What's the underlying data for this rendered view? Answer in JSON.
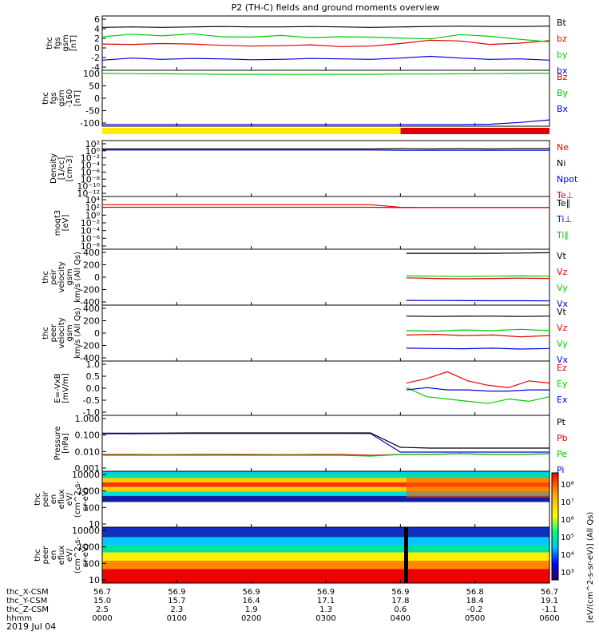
{
  "title": "P2 (TH-C) fields and ground moments overview",
  "x_time_ticks": [
    "0000",
    "0100",
    "0200",
    "0300",
    "0400",
    "0500",
    "0600"
  ],
  "orbit_rows": [
    {
      "label": "thc_X-CSM",
      "values": [
        "56.7",
        "56.9",
        "56.9",
        "56.9",
        "56.9",
        "56.8",
        "56.7"
      ]
    },
    {
      "label": "thc_Y-CSM",
      "values": [
        "15.0",
        "15.7",
        "16.4",
        "17.1",
        "17.8",
        "18.4",
        "19.1"
      ]
    },
    {
      "label": "thc_Z-CSM",
      "values": [
        "2.5",
        "2.3",
        "1.9",
        "1.3",
        "0.6",
        "-0.2",
        "-1.1"
      ]
    },
    {
      "label": "hhmm",
      "values": [
        "0000",
        "0100",
        "0200",
        "0300",
        "0400",
        "0500",
        "0600"
      ]
    }
  ],
  "date_label": "2019 Jul 04",
  "colors": {
    "black": "#000000",
    "red": "#e00000",
    "green": "#00cc00",
    "blue": "#0000dd",
    "yellow": "#ffee00"
  },
  "chart_data": [
    {
      "type": "line",
      "ylabel": [
        "thc",
        "fgs",
        "gsm",
        "[nT]"
      ],
      "yticks": [
        "6",
        "4",
        "2",
        "0",
        "-2",
        "-4"
      ],
      "ylim": [
        -5.5,
        6.5
      ],
      "legend": [
        {
          "name": "Bt",
          "color": "black"
        },
        {
          "name": "bz",
          "color": "red"
        },
        {
          "name": "by",
          "color": "green"
        },
        {
          "name": "bx",
          "color": "blue"
        }
      ],
      "series": [
        {
          "name": "Bt",
          "values": [
            4.2,
            4.3,
            4.2,
            4.3,
            4.4,
            4.3,
            4.3,
            4.4,
            4.3,
            4.2,
            4.3,
            4.4,
            4.5,
            4.4,
            4.4,
            4.5
          ]
        },
        {
          "name": "bz",
          "values": [
            0.3,
            0.2,
            0.4,
            0.3,
            0.0,
            -0.2,
            -0.1,
            0.1,
            -0.3,
            -0.2,
            0.4,
            1.2,
            1.0,
            0.2,
            0.5,
            1.1
          ]
        },
        {
          "name": "by",
          "values": [
            2.0,
            2.6,
            2.2,
            2.7,
            2.0,
            1.9,
            2.3,
            1.8,
            2.0,
            1.9,
            1.7,
            1.5,
            2.5,
            2.1,
            1.4,
            0.8
          ]
        },
        {
          "name": "bx",
          "values": [
            -3.5,
            -3.0,
            -3.3,
            -3.1,
            -3.2,
            -3.4,
            -3.3,
            -3.1,
            -3.2,
            -3.3,
            -3.0,
            -2.6,
            -3.0,
            -3.3,
            -3.2,
            -3.5
          ]
        }
      ]
    },
    {
      "type": "line",
      "ylabel": [
        "thc",
        "fgs",
        "gsm",
        "-160",
        "[nT]"
      ],
      "yticks": [
        "100",
        "50",
        "0",
        "-50",
        "-100"
      ],
      "ylim": [
        -140,
        105
      ],
      "legend": [
        {
          "name": "Bz",
          "color": "red"
        },
        {
          "name": "By",
          "color": "green"
        },
        {
          "name": "Bx",
          "color": "blue"
        }
      ],
      "series": [
        {
          "name": "By",
          "values": [
            98,
            97,
            96,
            95,
            94,
            94,
            93,
            93,
            94,
            94,
            95,
            95,
            96,
            97,
            98,
            99
          ]
        },
        {
          "name": "Bx",
          "values": [
            -140,
            -140,
            -140,
            -140,
            -140,
            -140,
            -140,
            -140,
            -140,
            -140,
            -140,
            -140,
            -140,
            -138,
            -130,
            -118
          ]
        }
      ]
    },
    {
      "type": "line",
      "ylabel": [
        "Density",
        "[1/cc]",
        "[cm-3]"
      ],
      "yticks": [
        "10²",
        "10⁰",
        "10⁻²",
        "10⁻⁴",
        "10⁻⁶",
        "10⁻⁸",
        "10⁻¹⁰",
        "10⁻¹²"
      ],
      "ylim": [
        -13,
        2.5
      ],
      "log": true,
      "legend": [
        {
          "name": "Ne",
          "color": "red"
        },
        {
          "name": "Ni",
          "color": "black"
        },
        {
          "name": "Npot",
          "color": "blue"
        },
        {
          "name": "Te⊥",
          "color": "red"
        }
      ],
      "series": [
        {
          "name": "Ni",
          "values": [
            0.5,
            0.5,
            0.5,
            0.5,
            0.5,
            0.5,
            0.5,
            0.5,
            0.5,
            0.5,
            0.6,
            0.5,
            0.6,
            0.5,
            0.6,
            0.6
          ]
        },
        {
          "name": "Npot",
          "values": [
            0.2,
            0.2,
            0.2,
            0.2,
            0.2,
            0.2,
            0.2,
            0.2,
            0.2,
            0.2,
            0.1,
            0.1,
            0.1,
            0.1,
            0.1,
            0.1
          ]
        }
      ]
    },
    {
      "type": "line",
      "ylabel": [
        "moqt3",
        "[eV]"
      ],
      "yticks": [
        "10⁴",
        "10²",
        "10⁰",
        "10⁻²",
        "10⁻⁴",
        "10⁻⁶",
        "10⁻⁸"
      ],
      "ylim": [
        -9,
        4.5
      ],
      "log": true,
      "legend": [
        {
          "name": "Te∥",
          "color": "black"
        },
        {
          "name": "Ti⊥",
          "color": "blue"
        },
        {
          "name": "Ti∥",
          "color": "green"
        }
      ],
      "series": [
        {
          "name": "Ti",
          "values": [
            2.7,
            2.7,
            2.7,
            2.7,
            2.7,
            2.7,
            2.7,
            2.7,
            2.7,
            2.7,
            2.0,
            1.9,
            1.9,
            1.9,
            1.9,
            1.9
          ]
        },
        {
          "name": "Te",
          "values": [
            2.0,
            2.0,
            2.0,
            2.0,
            2.0,
            2.0,
            2.0,
            2.0,
            2.0,
            2.0,
            1.9,
            1.9,
            1.9,
            1.9,
            1.9,
            1.9
          ]
        }
      ]
    },
    {
      "type": "line",
      "ylabel": [
        "thc",
        "peir",
        "velocity",
        "gsm",
        "km/s (All Qs)"
      ],
      "yticks": [
        "400",
        "200",
        "0",
        "-200",
        "-400"
      ],
      "ylim": [
        -420,
        420
      ],
      "start_x": 0.68,
      "legend": [
        {
          "name": "Vt",
          "color": "black"
        },
        {
          "name": "Vz",
          "color": "red"
        },
        {
          "name": "Vy",
          "color": "green"
        },
        {
          "name": "Vx",
          "color": "blue"
        }
      ],
      "series": [
        {
          "name": "Vt",
          "values": [
            380,
            380,
            380,
            380,
            385,
            390
          ]
        },
        {
          "name": "Vz",
          "values": [
            -10,
            -20,
            -25,
            -20,
            -15,
            -20
          ]
        },
        {
          "name": "Vy",
          "values": [
            20,
            15,
            10,
            15,
            20,
            15
          ]
        },
        {
          "name": "Vx",
          "values": [
            -370,
            -372,
            -374,
            -375,
            -375,
            -378
          ]
        }
      ]
    },
    {
      "type": "line",
      "ylabel": [
        "thc",
        "peer",
        "velocity",
        "gsm",
        "km/s (All Qs)"
      ],
      "yticks": [
        "400",
        "200",
        "0",
        "-200",
        "-400"
      ],
      "ylim": [
        -420,
        420
      ],
      "start_x": 0.68,
      "legend": [
        {
          "name": "Vt",
          "color": "black"
        },
        {
          "name": "Vz",
          "color": "red"
        },
        {
          "name": "Vy",
          "color": "green"
        },
        {
          "name": "Vx",
          "color": "blue"
        }
      ],
      "series": [
        {
          "name": "Vt",
          "values": [
            270,
            265,
            268,
            270,
            265,
            270
          ]
        },
        {
          "name": "Vz",
          "values": [
            -30,
            -20,
            -40,
            -30,
            -60,
            -40
          ]
        },
        {
          "name": "Vy",
          "values": [
            40,
            30,
            50,
            40,
            60,
            40
          ]
        },
        {
          "name": "Vx",
          "values": [
            -240,
            -245,
            -250,
            -240,
            -255,
            -245
          ]
        }
      ]
    },
    {
      "type": "line",
      "ylabel": [
        "E=-VxB",
        "[mV/m]"
      ],
      "yticks": [
        "1.0",
        "0.5",
        "0.0",
        "-0.5",
        "-1.0"
      ],
      "ylim": [
        -1.05,
        1.2
      ],
      "start_x": 0.68,
      "legend": [
        {
          "name": "Ez",
          "color": "red"
        },
        {
          "name": "Ey",
          "color": "green"
        },
        {
          "name": "Ex",
          "color": "blue"
        }
      ],
      "series": [
        {
          "name": "Ez",
          "values": [
            0.3,
            0.5,
            0.8,
            0.4,
            0.2,
            0.1,
            0.4,
            0.3
          ]
        },
        {
          "name": "Ey",
          "values": [
            0.1,
            -0.3,
            -0.4,
            -0.5,
            -0.6,
            -0.4,
            -0.5,
            -0.3
          ]
        },
        {
          "name": "Ex",
          "values": [
            0.0,
            0.1,
            0.0,
            0.0,
            -0.05,
            -0.05,
            0.0,
            0.0
          ]
        }
      ]
    },
    {
      "type": "line",
      "ylabel": [
        "Pressure",
        "[nPa]"
      ],
      "yticks": [
        "1.000",
        "0.100",
        "0.010",
        "0.001"
      ],
      "ylim": [
        -3.1,
        0.2
      ],
      "log": true,
      "legend": [
        {
          "name": "Pt",
          "color": "black"
        },
        {
          "name": "Pb",
          "color": "red"
        },
        {
          "name": "Pe",
          "color": "green"
        },
        {
          "name": "Pi",
          "color": "blue"
        }
      ],
      "series": [
        {
          "name": "Pt",
          "values": [
            -0.82,
            -0.82,
            -0.81,
            -0.8,
            -0.8,
            -0.8,
            -0.8,
            -0.8,
            -0.8,
            -0.8,
            -1.7,
            -1.75,
            -1.75,
            -1.75,
            -1.75,
            -1.75
          ]
        },
        {
          "name": "Pi",
          "values": [
            -0.85,
            -0.85,
            -0.84,
            -0.83,
            -0.83,
            -0.83,
            -0.83,
            -0.83,
            -0.83,
            -0.84,
            -2.0,
            -2.0,
            -2.0,
            -2.0,
            -2.0,
            -2.0
          ]
        },
        {
          "name": "Pb",
          "values": [
            -2.15,
            -2.15,
            -2.16,
            -2.15,
            -2.14,
            -2.15,
            -2.16,
            -2.15,
            -2.15,
            -2.2,
            -2.15,
            -2.15,
            -2.1,
            -2.15,
            -2.15,
            -2.1
          ]
        },
        {
          "name": "Pe",
          "values": [
            -2.2,
            -2.2,
            -2.2,
            -2.2,
            -2.2,
            -2.2,
            -2.2,
            -2.2,
            -2.2,
            -2.25,
            -2.15,
            -2.15,
            -2.1,
            -2.15,
            -2.15,
            -2.1
          ]
        }
      ]
    },
    {
      "type": "heatmap",
      "ylabel": [
        "thc",
        "peir",
        "en",
        "eflux",
        "eV/",
        "(cm^2-s-",
        "sr-eV)"
      ],
      "yticks": [
        "10000",
        "1000",
        "100",
        "10"
      ]
    },
    {
      "type": "heatmap",
      "ylabel": [
        "thc",
        "peer",
        "en",
        "eflux",
        "eV/",
        "(cm^2-s-",
        "sr-eV)"
      ],
      "yticks": [
        "10000",
        "1000",
        "100",
        "10"
      ]
    }
  ],
  "colorbar": {
    "label": "[eV/(cm^2-s-sr-eV)] (All Qs)",
    "ticks": [
      "10⁸",
      "10⁷",
      "10⁶",
      "10⁵",
      "10⁴",
      "10³"
    ]
  }
}
